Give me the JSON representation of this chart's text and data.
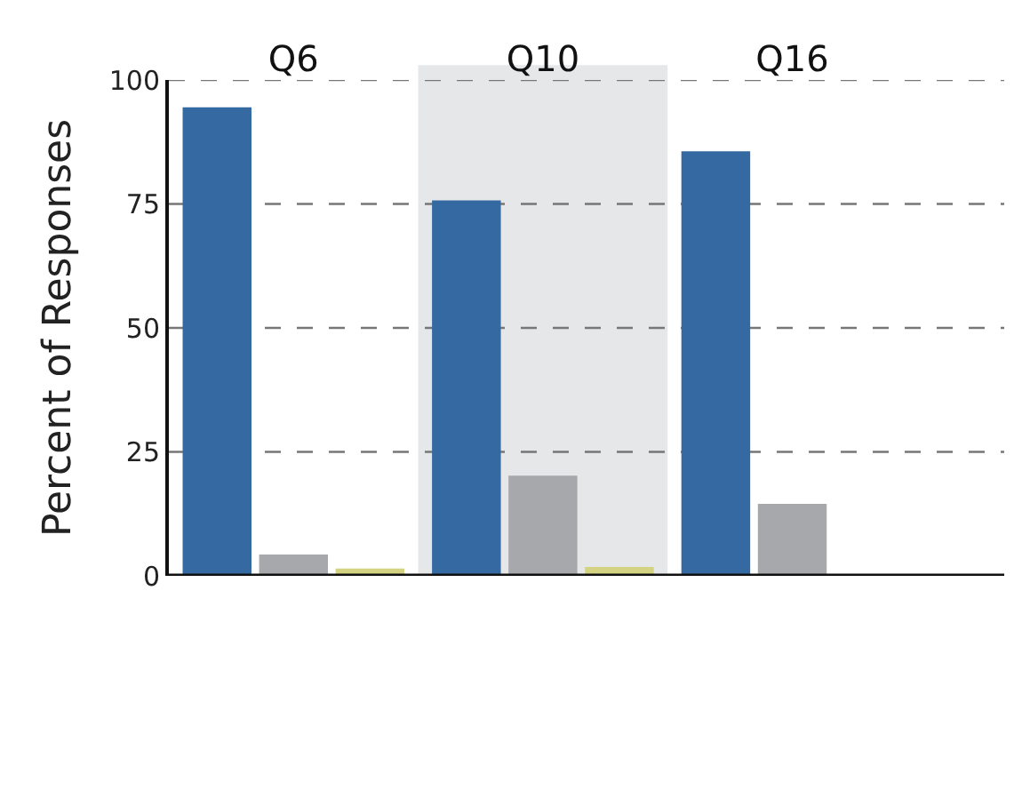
{
  "chart_data": {
    "type": "bar",
    "ylabel": "Percent of Responses",
    "categories": [
      "Q6",
      "Q10",
      "Q16"
    ],
    "series": [
      {
        "color": "#3469a1",
        "values": [
          94.5,
          75.7,
          85.6
        ]
      },
      {
        "color": "#a7a8ab",
        "values": [
          4.3,
          20.2,
          14.5
        ]
      },
      {
        "color": "#d3d383",
        "values": [
          1.5,
          1.8,
          0
        ]
      }
    ],
    "ylim": [
      0,
      100
    ],
    "yticks": [
      0,
      25,
      50,
      75,
      100
    ],
    "grid": "y",
    "bands": [
      {
        "axis": "x",
        "from": "Q10",
        "to": "Q10",
        "color": "#e6e7e9"
      }
    ]
  }
}
